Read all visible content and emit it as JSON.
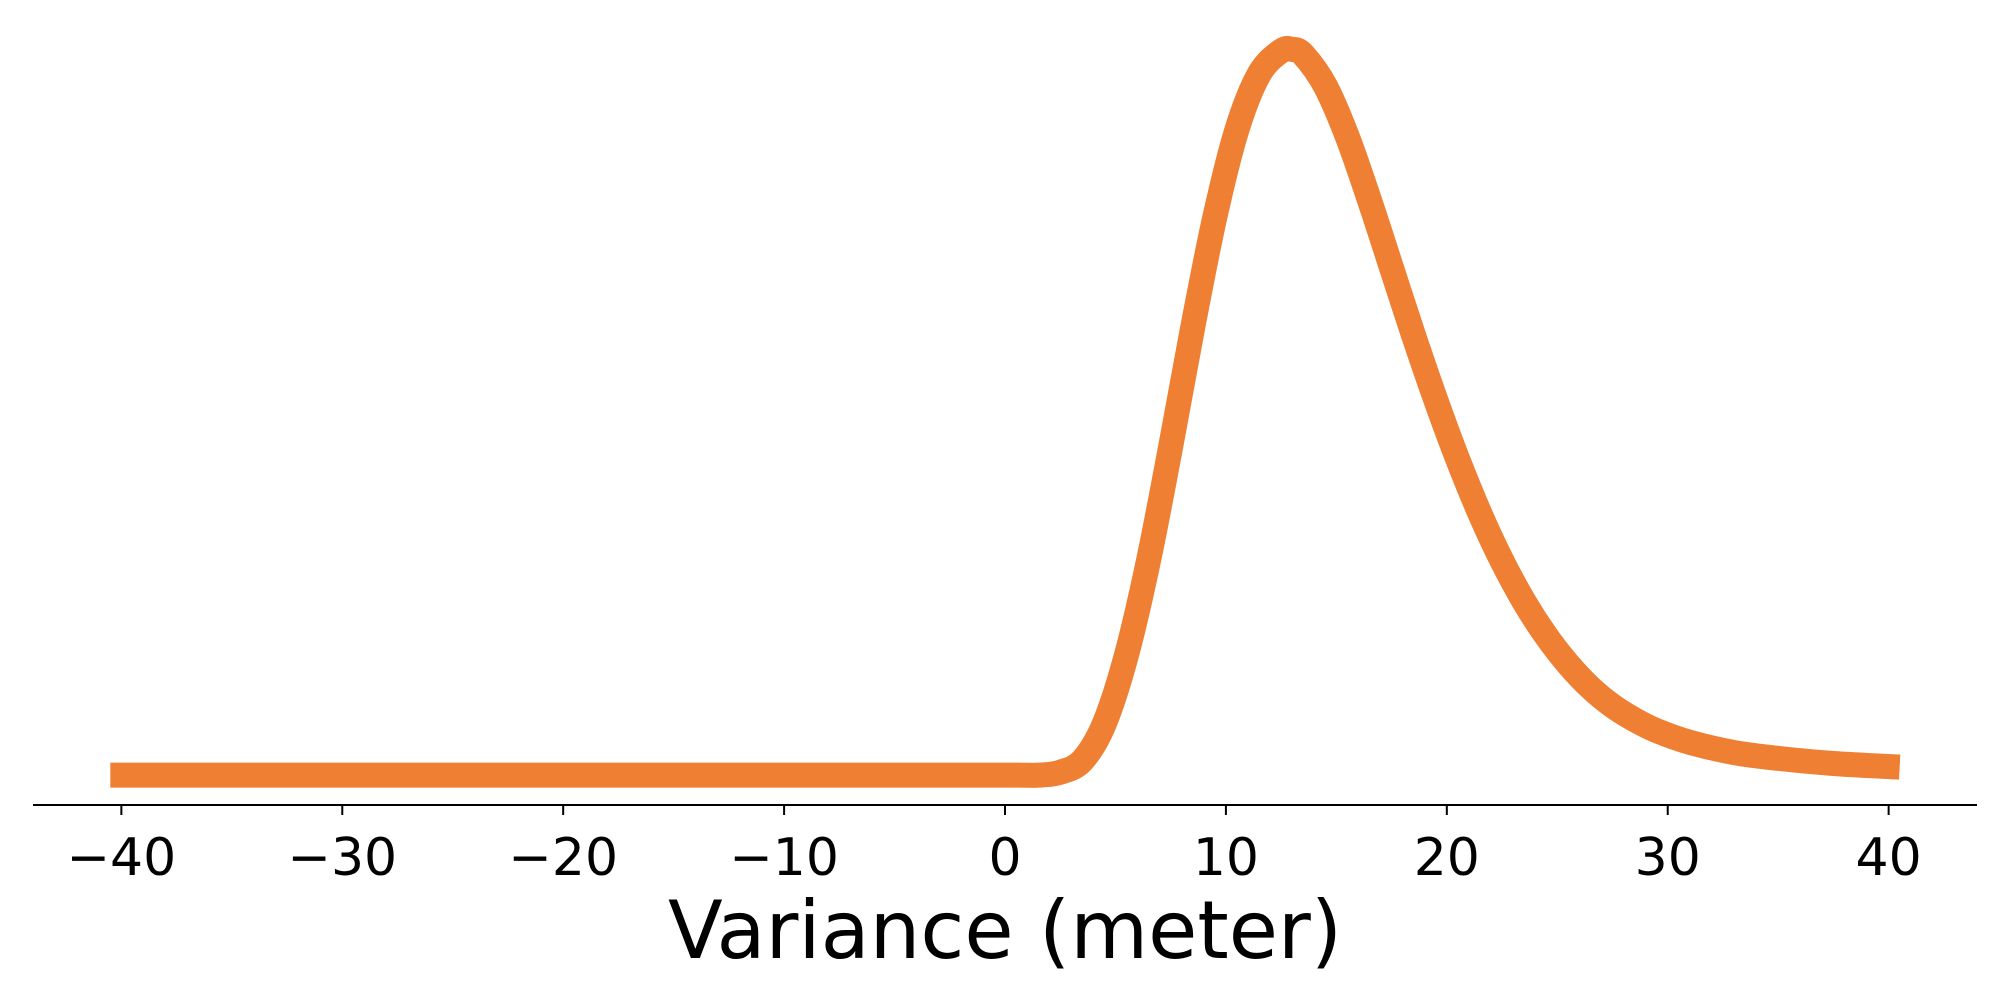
{
  "chart_data": {
    "type": "line",
    "title": "",
    "xlabel": "Variance (meter)",
    "ylabel": "",
    "xlim": [
      -44,
      44
    ],
    "ylim": [
      -0.004,
      0.101
    ],
    "xticks": [
      -40,
      -30,
      -20,
      -10,
      0,
      10,
      20,
      30,
      40
    ],
    "xtick_labels": [
      "−40",
      "−30",
      "−20",
      "−10",
      "0",
      "10",
      "20",
      "30",
      "40"
    ],
    "grid": false,
    "legend": "none",
    "series": [
      {
        "color": "#ee7f33",
        "x": [
          -40.5,
          -30,
          -20,
          -10,
          0,
          1.5,
          2.5,
          3.5,
          4.5,
          5.5,
          6.5,
          7.5,
          8.5,
          9.5,
          10.5,
          11.5,
          12.5,
          13.0,
          13.5,
          14.5,
          15.5,
          16.5,
          17.5,
          18.5,
          19.5,
          20.5,
          21.5,
          22.5,
          23.5,
          24.5,
          25.5,
          26.5,
          27.5,
          28.5,
          29.5,
          31,
          33,
          35,
          37.5,
          40.5
        ],
        "y": [
          0.0001,
          0.0001,
          0.0001,
          0.0001,
          0.0001,
          0.0001,
          0.0005,
          0.0021,
          0.0072,
          0.0166,
          0.0296,
          0.0452,
          0.0616,
          0.0767,
          0.0887,
          0.0963,
          0.0995,
          0.0997,
          0.099,
          0.0947,
          0.0877,
          0.079,
          0.0697,
          0.0604,
          0.0516,
          0.0434,
          0.036,
          0.0295,
          0.0239,
          0.0192,
          0.0153,
          0.0121,
          0.0096,
          0.0077,
          0.0062,
          0.0046,
          0.0032,
          0.0024,
          0.0017,
          0.0012
        ]
      }
    ]
  }
}
